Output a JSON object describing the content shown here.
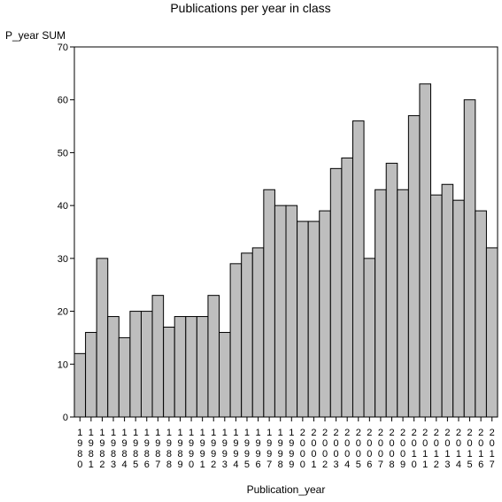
{
  "chart_data": {
    "type": "bar",
    "title": "Publications per year in class",
    "ylabel": "P_year SUM",
    "xlabel": "Publication_year",
    "ylim": [
      0,
      70
    ],
    "yticks": [
      0,
      10,
      20,
      30,
      40,
      50,
      60,
      70
    ],
    "categories": [
      "1980",
      "1981",
      "1982",
      "1983",
      "1984",
      "1985",
      "1986",
      "1987",
      "1988",
      "1989",
      "1990",
      "1991",
      "1992",
      "1993",
      "1994",
      "1995",
      "1996",
      "1997",
      "1998",
      "1999",
      "2000",
      "2001",
      "2002",
      "2003",
      "2004",
      "2005",
      "2006",
      "2007",
      "2008",
      "2009",
      "2010",
      "2011",
      "2012",
      "2013",
      "2014",
      "2015",
      "2016",
      "2017"
    ],
    "values": [
      12,
      16,
      30,
      19,
      15,
      20,
      20,
      23,
      17,
      19,
      19,
      19,
      23,
      16,
      29,
      31,
      32,
      43,
      40,
      40,
      37,
      37,
      39,
      47,
      49,
      56,
      30,
      43,
      48,
      43,
      57,
      63,
      42,
      44,
      41,
      60,
      39,
      32
    ],
    "bar_color": "#bebebe",
    "grid": false,
    "legend": "none"
  }
}
